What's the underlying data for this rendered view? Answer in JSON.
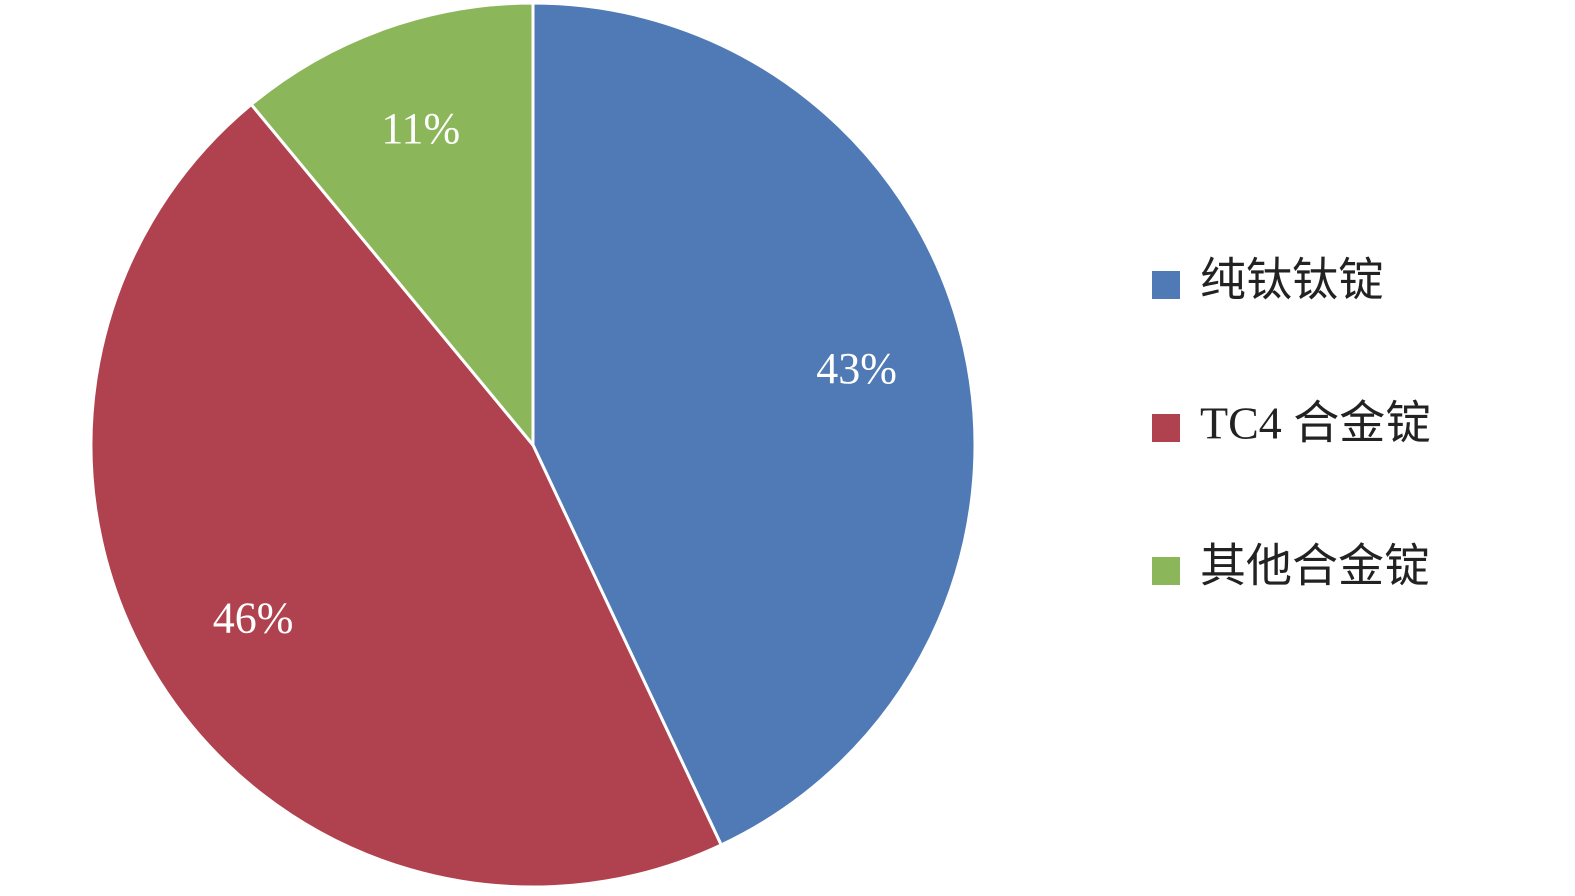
{
  "chart_data": {
    "type": "pie",
    "categories": [
      "纯钛钛锭",
      "TC4 合金锭",
      "其他合金锭"
    ],
    "values": [
      43,
      46,
      11
    ],
    "value_labels": [
      "43%",
      "46%",
      "11%"
    ],
    "colors": [
      "#4f7ab5",
      "#b0424f",
      "#8cb65a"
    ],
    "legend": "right"
  }
}
